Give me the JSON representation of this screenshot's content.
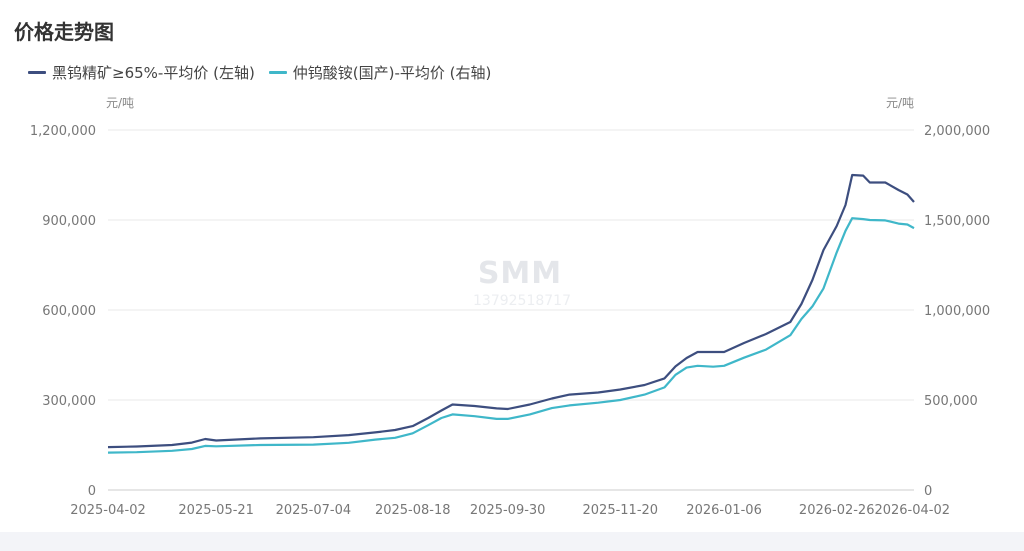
{
  "title": "价格走势图",
  "watermark": {
    "brand": "SMM",
    "phone": "13792518717"
  },
  "colors": {
    "series_left": "#3d4e7f",
    "series_right": "#3fb7c9",
    "grid": "#e8e8e8"
  },
  "chart_data": {
    "type": "line",
    "title": "价格走势图",
    "y_left": {
      "unit": "元/吨",
      "ylim": [
        0,
        1200000
      ],
      "ticks": [
        "1,200,000",
        "900,000",
        "600,000",
        "300,000",
        "0"
      ]
    },
    "y_right": {
      "unit": "元/吨",
      "ylim": [
        0,
        2000000
      ],
      "ticks": [
        "2,000,000",
        "1,500,000",
        "1,000,000",
        "500,000",
        "0"
      ]
    },
    "x_ticks": [
      "2025-04-02",
      "2025-05-21",
      "2025-07-04",
      "2025-08-18",
      "2025-09-30",
      "2025-11-20",
      "2026-01-06",
      "2026-02-26",
      "2026-04-02"
    ],
    "grid": true,
    "legend_position": "top-left",
    "series": [
      {
        "name": "黑钨精矿≥65%-平均价 (左轴)",
        "axis": "left",
        "points": [
          [
            "2025-04-02",
            143000
          ],
          [
            "2025-04-15",
            145000
          ],
          [
            "2025-05-01",
            150000
          ],
          [
            "2025-05-10",
            158000
          ],
          [
            "2025-05-16",
            170000
          ],
          [
            "2025-05-21",
            165000
          ],
          [
            "2025-06-10",
            172000
          ],
          [
            "2025-07-04",
            176000
          ],
          [
            "2025-07-20",
            183000
          ],
          [
            "2025-08-01",
            192000
          ],
          [
            "2025-08-10",
            200000
          ],
          [
            "2025-08-18",
            213000
          ],
          [
            "2025-08-25",
            240000
          ],
          [
            "2025-08-31",
            265000
          ],
          [
            "2025-09-05",
            285000
          ],
          [
            "2025-09-15",
            280000
          ],
          [
            "2025-09-25",
            272000
          ],
          [
            "2025-09-30",
            270000
          ],
          [
            "2025-10-10",
            285000
          ],
          [
            "2025-10-20",
            305000
          ],
          [
            "2025-10-28",
            318000
          ],
          [
            "2025-11-10",
            325000
          ],
          [
            "2025-11-20",
            335000
          ],
          [
            "2025-12-01",
            350000
          ],
          [
            "2025-12-10",
            372000
          ],
          [
            "2025-12-15",
            412000
          ],
          [
            "2025-12-20",
            440000
          ],
          [
            "2025-12-25",
            460000
          ],
          [
            "2026-01-01",
            460000
          ],
          [
            "2026-01-06",
            460000
          ],
          [
            "2026-01-15",
            490000
          ],
          [
            "2026-01-25",
            520000
          ],
          [
            "2026-02-05",
            560000
          ],
          [
            "2026-02-10",
            620000
          ],
          [
            "2026-02-15",
            700000
          ],
          [
            "2026-02-20",
            800000
          ],
          [
            "2026-02-26",
            880000
          ],
          [
            "2026-03-02",
            950000
          ],
          [
            "2026-03-05",
            1050000
          ],
          [
            "2026-03-10",
            1048000
          ],
          [
            "2026-03-13",
            1025000
          ],
          [
            "2026-03-20",
            1025000
          ],
          [
            "2026-03-26",
            1000000
          ],
          [
            "2026-03-30",
            985000
          ],
          [
            "2026-04-02",
            960000
          ]
        ]
      },
      {
        "name": "仲钨酸铵(国产)-平均价 (右轴)",
        "axis": "right",
        "points": [
          [
            "2025-04-02",
            208000
          ],
          [
            "2025-04-15",
            210000
          ],
          [
            "2025-05-01",
            218000
          ],
          [
            "2025-05-10",
            228000
          ],
          [
            "2025-05-16",
            245000
          ],
          [
            "2025-05-21",
            243000
          ],
          [
            "2025-06-10",
            250000
          ],
          [
            "2025-07-04",
            252000
          ],
          [
            "2025-07-20",
            262000
          ],
          [
            "2025-08-01",
            280000
          ],
          [
            "2025-08-10",
            290000
          ],
          [
            "2025-08-18",
            315000
          ],
          [
            "2025-08-25",
            360000
          ],
          [
            "2025-08-31",
            400000
          ],
          [
            "2025-09-05",
            420000
          ],
          [
            "2025-09-15",
            410000
          ],
          [
            "2025-09-25",
            395000
          ],
          [
            "2025-09-30",
            395000
          ],
          [
            "2025-10-10",
            420000
          ],
          [
            "2025-10-20",
            455000
          ],
          [
            "2025-10-28",
            470000
          ],
          [
            "2025-11-10",
            485000
          ],
          [
            "2025-11-20",
            500000
          ],
          [
            "2025-12-01",
            530000
          ],
          [
            "2025-12-10",
            570000
          ],
          [
            "2025-12-15",
            640000
          ],
          [
            "2025-12-20",
            680000
          ],
          [
            "2025-12-25",
            690000
          ],
          [
            "2026-01-01",
            685000
          ],
          [
            "2026-01-06",
            690000
          ],
          [
            "2026-01-15",
            735000
          ],
          [
            "2026-01-25",
            780000
          ],
          [
            "2026-02-05",
            860000
          ],
          [
            "2026-02-10",
            950000
          ],
          [
            "2026-02-15",
            1020000
          ],
          [
            "2026-02-20",
            1120000
          ],
          [
            "2026-02-26",
            1320000
          ],
          [
            "2026-03-02",
            1440000
          ],
          [
            "2026-03-05",
            1510000
          ],
          [
            "2026-03-10",
            1505000
          ],
          [
            "2026-03-13",
            1500000
          ],
          [
            "2026-03-20",
            1498000
          ],
          [
            "2026-03-26",
            1480000
          ],
          [
            "2026-03-30",
            1475000
          ],
          [
            "2026-04-02",
            1455000
          ]
        ]
      }
    ]
  }
}
